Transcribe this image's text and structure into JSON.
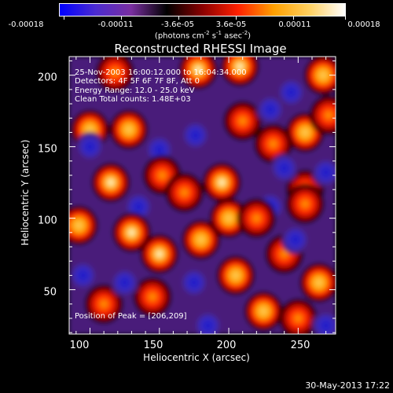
{
  "chart_data": {
    "type": "heatmap",
    "title": "Reconstructed RHESSI Image",
    "xlabel": "Heliocentric X (arcsec)",
    "ylabel": "Heliocentric Y (arcsec)",
    "xlim": [
      85,
      277
    ],
    "ylim": [
      19,
      213
    ],
    "x_ticks": [
      "100",
      "150",
      "200",
      "250"
    ],
    "y_ticks": [
      "50",
      "100",
      "150",
      "200"
    ],
    "colorbar": {
      "ticks": [
        "-0.00018",
        "-0.00011",
        "-3.6e-05",
        "3.6e-05",
        "0.00011",
        "0.00018"
      ],
      "units": "(photons cm",
      "units_sup1": "-2",
      "units_mid": " s",
      "units_sup2": "-1",
      "units_mid2": " asec",
      "units_sup3": "-2",
      "units_end": ")",
      "range": [
        -0.00018,
        0.00018
      ],
      "colormap": [
        "#0000ff",
        "#4b2bd0",
        "#7a2fa0",
        "#000000",
        "#8a0000",
        "#ff2000",
        "#ffa000",
        "#ffd060",
        "#ffffff"
      ]
    },
    "info_lines": [
      "25-Nov-2003 16:00:12.000 to 16:04:34.000",
      "Detectors: 4F 5F 6F 7F 8F, Att 0",
      "Energy Range: 12.0 - 25.0 keV",
      "Clean    Total counts: 1.48E+03"
    ],
    "peak_label": "Position of Peak = [206,209]",
    "blobs": [
      {
        "x": 178,
        "y": 204,
        "v": 0.9
      },
      {
        "x": 208,
        "y": 206,
        "v": 1.0
      },
      {
        "x": 268,
        "y": 200,
        "v": 0.75
      },
      {
        "x": 118,
        "y": 202,
        "v": 0.45
      },
      {
        "x": 245,
        "y": 188,
        "v": -0.45
      },
      {
        "x": 100,
        "y": 162,
        "v": 0.75
      },
      {
        "x": 128,
        "y": 162,
        "v": 0.7
      },
      {
        "x": 210,
        "y": 168,
        "v": 0.6
      },
      {
        "x": 255,
        "y": 160,
        "v": 0.85
      },
      {
        "x": 232,
        "y": 152,
        "v": 0.6
      },
      {
        "x": 272,
        "y": 172,
        "v": 0.6
      },
      {
        "x": 100,
        "y": 150,
        "v": -0.75
      },
      {
        "x": 150,
        "y": 148,
        "v": -0.55
      },
      {
        "x": 176,
        "y": 158,
        "v": -0.65
      },
      {
        "x": 230,
        "y": 176,
        "v": -0.5
      },
      {
        "x": 115,
        "y": 125,
        "v": 0.95
      },
      {
        "x": 152,
        "y": 130,
        "v": 0.6
      },
      {
        "x": 195,
        "y": 125,
        "v": 0.95
      },
      {
        "x": 168,
        "y": 118,
        "v": 0.55
      },
      {
        "x": 255,
        "y": 120,
        "v": 0.65
      },
      {
        "x": 240,
        "y": 135,
        "v": -0.6
      },
      {
        "x": 135,
        "y": 108,
        "v": -0.6
      },
      {
        "x": 230,
        "y": 108,
        "v": -0.5
      },
      {
        "x": 270,
        "y": 132,
        "v": -0.45
      },
      {
        "x": 92,
        "y": 95,
        "v": 0.8
      },
      {
        "x": 130,
        "y": 90,
        "v": 1.0
      },
      {
        "x": 150,
        "y": 75,
        "v": 0.95
      },
      {
        "x": 180,
        "y": 85,
        "v": 0.7
      },
      {
        "x": 200,
        "y": 100,
        "v": 0.75
      },
      {
        "x": 220,
        "y": 100,
        "v": 0.6
      },
      {
        "x": 205,
        "y": 60,
        "v": 0.8
      },
      {
        "x": 240,
        "y": 75,
        "v": 0.5
      },
      {
        "x": 255,
        "y": 110,
        "v": 0.55
      },
      {
        "x": 265,
        "y": 55,
        "v": 0.8
      },
      {
        "x": 248,
        "y": 85,
        "v": -0.75
      },
      {
        "x": 175,
        "y": 55,
        "v": -0.55
      },
      {
        "x": 110,
        "y": 40,
        "v": 0.5
      },
      {
        "x": 145,
        "y": 45,
        "v": 0.6
      },
      {
        "x": 225,
        "y": 35,
        "v": 0.7
      },
      {
        "x": 250,
        "y": 30,
        "v": 0.5
      },
      {
        "x": 95,
        "y": 60,
        "v": -0.55
      },
      {
        "x": 125,
        "y": 55,
        "v": -0.45
      },
      {
        "x": 185,
        "y": 25,
        "v": -0.5
      },
      {
        "x": 270,
        "y": 25,
        "v": -0.5
      }
    ]
  },
  "footer": {
    "date": "30-May-2013 17:22"
  }
}
